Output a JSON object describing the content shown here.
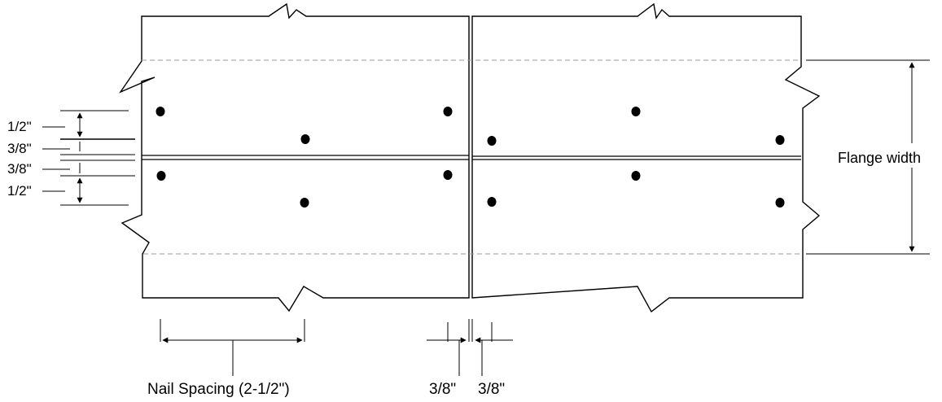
{
  "labels": {
    "flange_width": "Flange width",
    "nail_spacing": "Nail Spacing (2-1/2\")",
    "left_dims": [
      "1/2\"",
      "3/8\"",
      "3/8\"",
      "1/2\""
    ],
    "bottom_dims": [
      "3/8\"",
      "3/8\""
    ]
  },
  "colors": {
    "stroke": "#000000",
    "dashed": "#999999"
  }
}
